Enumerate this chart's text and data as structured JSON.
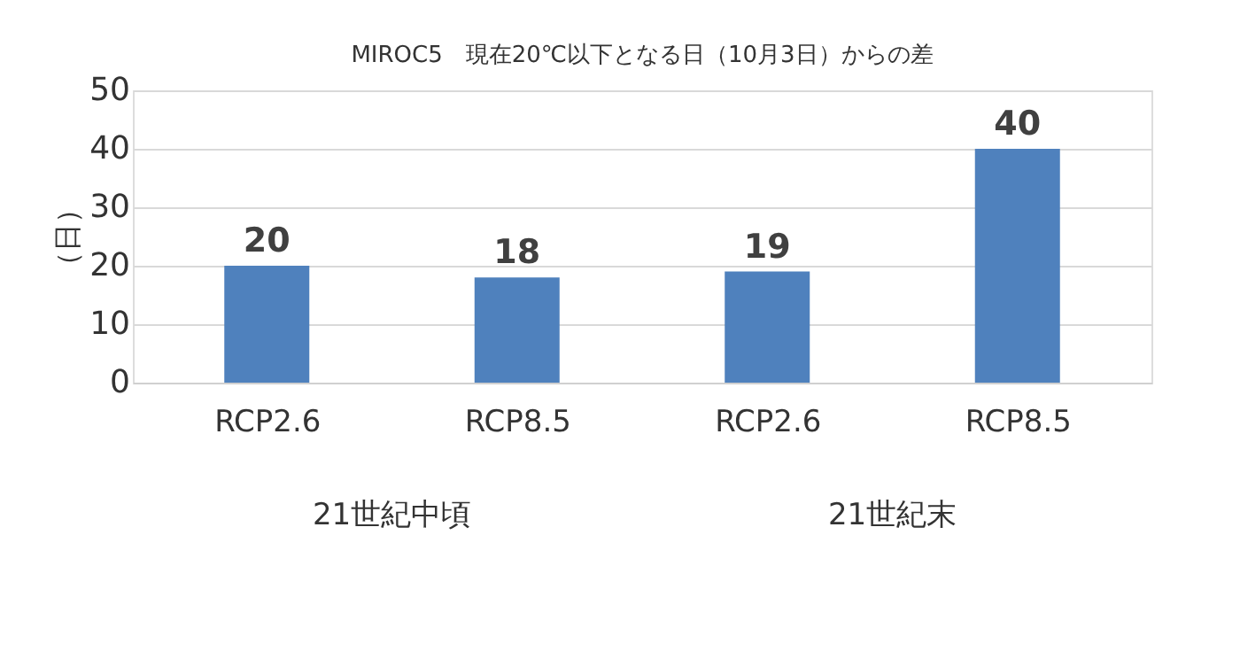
{
  "chart_data": {
    "type": "bar",
    "title": "MIROC5　現在20℃以下となる日（10月3日）からの差",
    "ylabel": "（日）",
    "categories": [
      "RCP2.6",
      "RCP8.5",
      "RCP2.6",
      "RCP8.5"
    ],
    "values": [
      20,
      18,
      19,
      40
    ],
    "color": "#4f81bd",
    "data_labels": true,
    "ylim": [
      0,
      50
    ],
    "yticks": [
      0,
      10,
      20,
      30,
      40,
      50
    ],
    "grid": "y",
    "annotations": [
      "21世紀中頃",
      "21世紀末"
    ]
  }
}
